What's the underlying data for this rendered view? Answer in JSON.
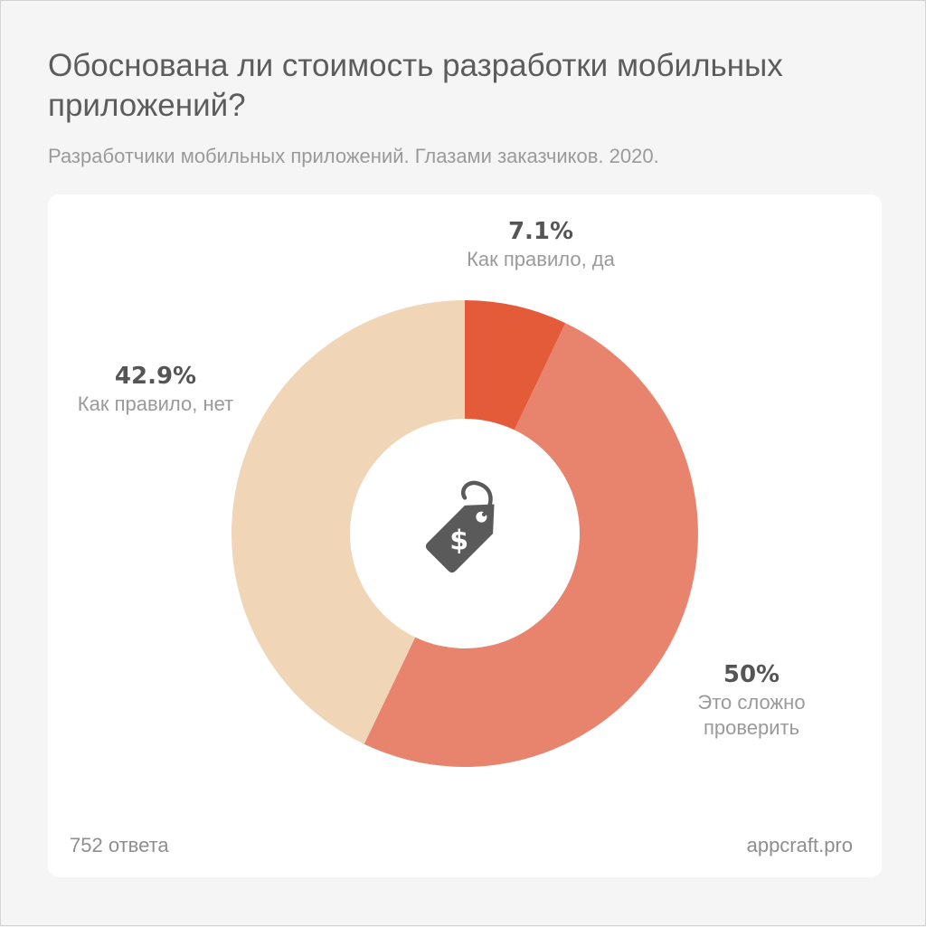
{
  "header": {
    "title": "Обоснована ли стоимость разработки мобильных приложений?",
    "subtitle": "Разработчики мобильных приложений. Глазами заказчиков. 2020."
  },
  "chart_data": {
    "type": "pie",
    "title": "Обоснована ли стоимость разработки мобильных приложений?",
    "subtitle": "Разработчики мобильных приложений. Глазами заказчиков. 2020.",
    "categories": [
      "Как правило, да",
      "Это сложно проверить",
      "Как правило, нет"
    ],
    "values": [
      7.1,
      50,
      42.9
    ],
    "value_labels": [
      "7.1%",
      "50%",
      "42.9%"
    ],
    "colors": [
      "#e45b3a",
      "#e8836e",
      "#f0d5b6"
    ],
    "donut": true,
    "center_icon": "price-tag-dollar-icon",
    "legend": "none"
  },
  "labels": {
    "yes": {
      "value": "7.1%",
      "name": "Как правило, да"
    },
    "hard": {
      "value": "50%",
      "name_line1": "Это сложно",
      "name_line2": "проверить"
    },
    "no": {
      "value": "42.9%",
      "name": "Как правило, нет"
    }
  },
  "footer": {
    "responses": "752 ответа",
    "source": "appcraft.pro"
  }
}
